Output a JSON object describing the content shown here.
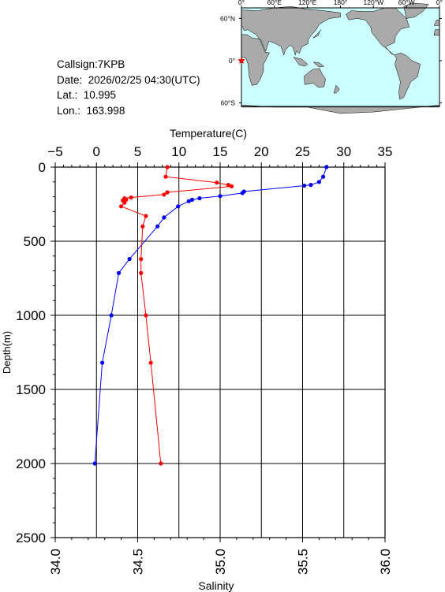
{
  "meta": {
    "callsign": "Callsign:7KPB",
    "date": "Date:  2026/02/25 04:30(UTC)",
    "lat": "Lat.:  10.995",
    "lon": "Lon.:  163.998"
  },
  "map": {
    "lon_labels": [
      "0°",
      "60°E",
      "120°E",
      "180°",
      "120°W",
      "60°W",
      "0°"
    ],
    "lat_labels": [
      "60°N",
      "0°",
      "60°S"
    ],
    "station_marker": "red-star",
    "ocean_color": "#ccffff",
    "land_color": "#aaaaaa"
  },
  "chart_data": {
    "type": "line",
    "ylabel": "Depth(m)",
    "ylim": [
      2500,
      0
    ],
    "yticks": [
      "0",
      "500",
      "1000",
      "1500",
      "2000",
      "2500"
    ],
    "top_axis": {
      "label": "Temperature(C)",
      "lim": [
        -5,
        35
      ],
      "ticks": [
        "−5",
        "0",
        "5",
        "10",
        "15",
        "20",
        "25",
        "30",
        "35"
      ]
    },
    "bottom_axis": {
      "label": "Salinity",
      "lim": [
        34.0,
        36.0
      ],
      "ticks": [
        "34.0",
        "34.5",
        "35.0",
        "35.5",
        "36.0"
      ]
    },
    "grid": true,
    "series": [
      {
        "axis": "top",
        "color": "#0000ff",
        "points": [
          [
            27.9,
            0
          ],
          [
            27.5,
            65
          ],
          [
            27.0,
            100
          ],
          [
            26.0,
            120
          ],
          [
            25.2,
            125
          ],
          [
            17.9,
            165
          ],
          [
            17.7,
            175
          ],
          [
            15.0,
            195
          ],
          [
            12.5,
            210
          ],
          [
            11.6,
            220
          ],
          [
            11.2,
            230
          ],
          [
            9.9,
            265
          ],
          [
            8.2,
            340
          ],
          [
            7.4,
            400
          ],
          [
            4.0,
            620
          ],
          [
            2.7,
            715
          ],
          [
            1.8,
            1000
          ],
          [
            0.7,
            1320
          ],
          [
            -0.2,
            2000
          ]
        ]
      },
      {
        "axis": "bottom",
        "color": "#ff0000",
        "points": [
          [
            34.68,
            0
          ],
          [
            34.67,
            65
          ],
          [
            34.98,
            105
          ],
          [
            35.05,
            120
          ],
          [
            35.07,
            130
          ],
          [
            34.68,
            170
          ],
          [
            34.66,
            185
          ],
          [
            34.46,
            205
          ],
          [
            34.42,
            210
          ],
          [
            34.43,
            220
          ],
          [
            34.41,
            225
          ],
          [
            34.42,
            240
          ],
          [
            34.4,
            265
          ],
          [
            34.55,
            330
          ],
          [
            34.53,
            400
          ],
          [
            34.52,
            620
          ],
          [
            34.52,
            715
          ],
          [
            34.55,
            1000
          ],
          [
            34.58,
            1320
          ],
          [
            34.64,
            2000
          ]
        ]
      }
    ]
  }
}
